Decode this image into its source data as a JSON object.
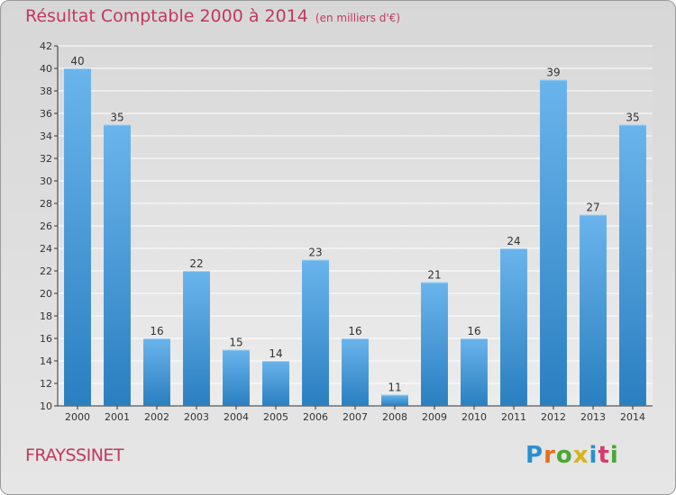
{
  "chart_data": {
    "type": "bar",
    "title": "Résultat Comptable 2000 à 2014",
    "unit_note": "(en milliers d'€)",
    "categories": [
      "2000",
      "2001",
      "2002",
      "2003",
      "2004",
      "2005",
      "2006",
      "2007",
      "2008",
      "2009",
      "2010",
      "2011",
      "2012",
      "2013",
      "2014"
    ],
    "values": [
      40,
      35,
      16,
      22,
      15,
      14,
      23,
      16,
      11,
      21,
      16,
      24,
      39,
      27,
      35
    ],
    "ylim": [
      10,
      42
    ],
    "yticks": [
      10,
      12,
      14,
      16,
      18,
      20,
      22,
      24,
      26,
      28,
      30,
      32,
      34,
      36,
      38,
      40,
      42
    ],
    "xlabel": "",
    "ylabel": "",
    "grid": true
  },
  "footer": {
    "commune": "FRAYSSINET",
    "brand": "Proxiti"
  },
  "colors": {
    "title": "#c0395e",
    "bar_top": "#6ab4ec",
    "bar_bottom": "#2a7fc0",
    "grid": "#ffffff",
    "logo": [
      "#2a8fd0",
      "#e86d1f",
      "#4aa832",
      "#d8b21c",
      "#2a8fd0",
      "#d83a6a",
      "#4aa832"
    ]
  }
}
